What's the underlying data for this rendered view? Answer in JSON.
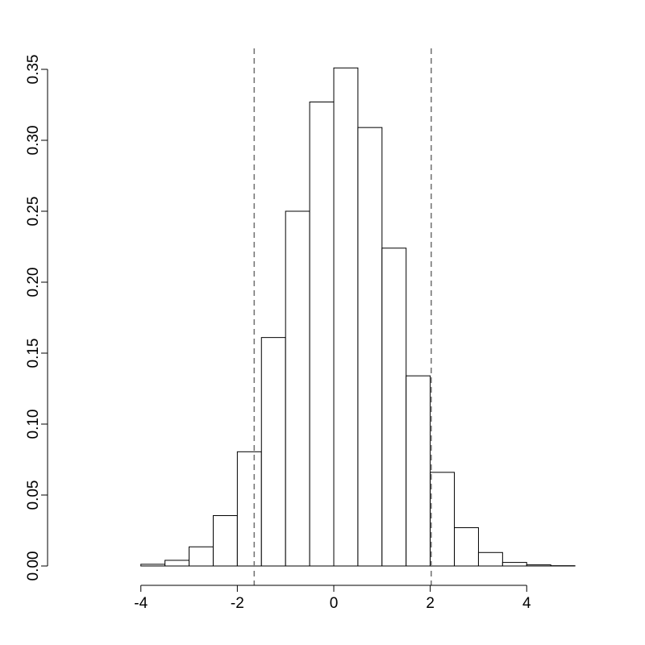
{
  "chart_data": {
    "type": "bar",
    "title": "",
    "xlabel": "",
    "ylabel": "",
    "bin_width": 0.5,
    "bin_starts": [
      -5.5,
      -5.0,
      -4.5,
      -4.0,
      -3.5,
      -3.0,
      -2.5,
      -2.0,
      -1.5,
      -1.0,
      -0.5,
      0.0,
      0.5,
      1.0,
      1.5,
      2.0,
      2.5,
      3.0,
      3.5,
      4.0,
      4.5,
      5.0
    ],
    "values": [
      0.0,
      0.0,
      0.0,
      0.0012,
      0.004,
      0.0135,
      0.0355,
      0.0805,
      0.161,
      0.25,
      0.327,
      0.351,
      0.309,
      0.224,
      0.134,
      0.066,
      0.027,
      0.0095,
      0.0025,
      0.0008,
      0.0002,
      0.0
    ],
    "xlim": [
      -5.5,
      5.5
    ],
    "ylim": [
      0,
      0.35
    ],
    "x_ticks": [
      -4,
      -2,
      0,
      2,
      4
    ],
    "x_tick_labels": [
      "-4",
      "-2",
      "0",
      "2",
      "4"
    ],
    "y_ticks": [
      0,
      0.05,
      0.1,
      0.15,
      0.2,
      0.25,
      0.3,
      0.35
    ],
    "y_tick_labels": [
      "0.00",
      "0.05",
      "0.10",
      "0.15",
      "0.20",
      "0.25",
      "0.30",
      "0.35"
    ],
    "reference_lines": [
      {
        "x": -1.65,
        "style": "dashed",
        "color": "#777777"
      },
      {
        "x": 2.02,
        "style": "dashed",
        "color": "#777777"
      }
    ],
    "grid": false,
    "bar_fill": "#ffffff",
    "bar_stroke": "#000000"
  }
}
